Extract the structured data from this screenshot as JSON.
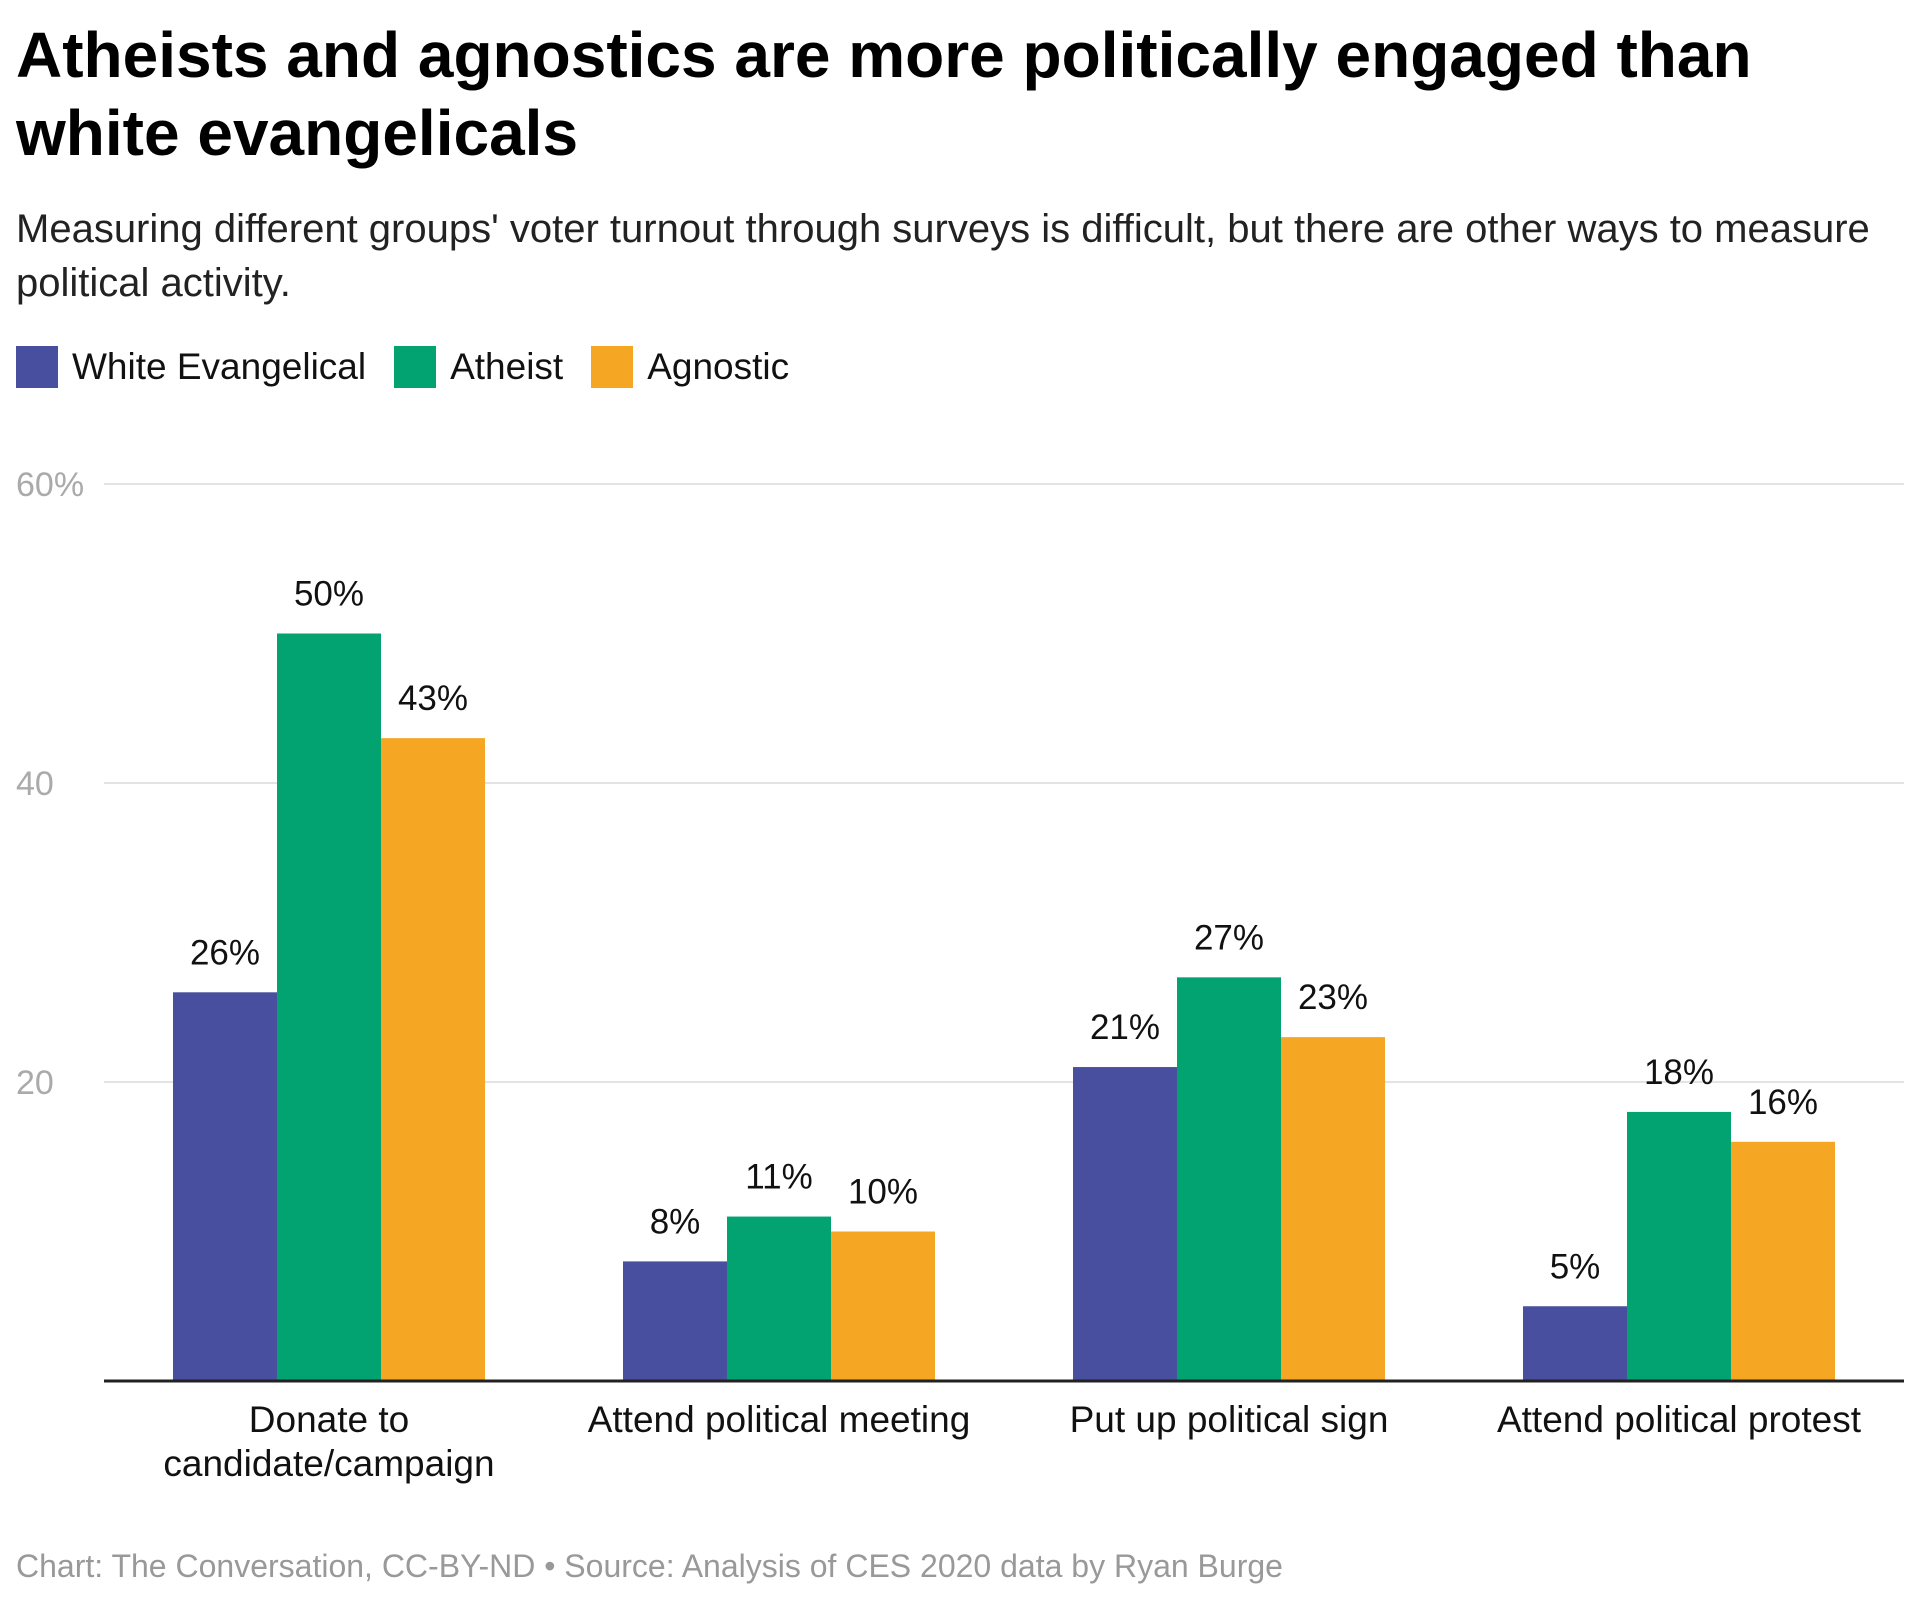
{
  "title": "Atheists and agnostics are more politically engaged than white evangelicals",
  "subtitle": "Measuring different groups' voter turnout through surveys is difficult, but there are other ways to measure political activity.",
  "footer": "Chart: The Conversation, CC-BY-ND • Source: Analysis of CES 2020 data by Ryan Burge",
  "chart_data": {
    "type": "bar",
    "categories": [
      "Donate to candidate/campaign",
      "Attend political meeting",
      "Put up political sign",
      "Attend political protest"
    ],
    "category_lines": [
      [
        "Donate to",
        "candidate/campaign"
      ],
      [
        "Attend political meeting"
      ],
      [
        "Put up political sign"
      ],
      [
        "Attend political protest"
      ]
    ],
    "series": [
      {
        "name": "White Evangelical",
        "color": "#474f9e",
        "values": [
          26,
          8,
          21,
          5
        ],
        "labels": [
          "26%",
          "8%",
          "21%",
          "5%"
        ]
      },
      {
        "name": "Atheist",
        "color": "#03a371",
        "values": [
          50,
          11,
          27,
          18
        ],
        "labels": [
          "50%",
          "11%",
          "27%",
          "18%"
        ]
      },
      {
        "name": "Agnostic",
        "color": "#f5a623",
        "values": [
          43,
          10,
          23,
          16
        ],
        "labels": [
          "43%",
          "10%",
          "23%",
          "16%"
        ]
      }
    ],
    "yticks": [
      20,
      40,
      60
    ],
    "ytick_labels": [
      "20",
      "40",
      "60%"
    ],
    "ylim": [
      0,
      60
    ],
    "grid": true,
    "legend_position": "top-left"
  }
}
